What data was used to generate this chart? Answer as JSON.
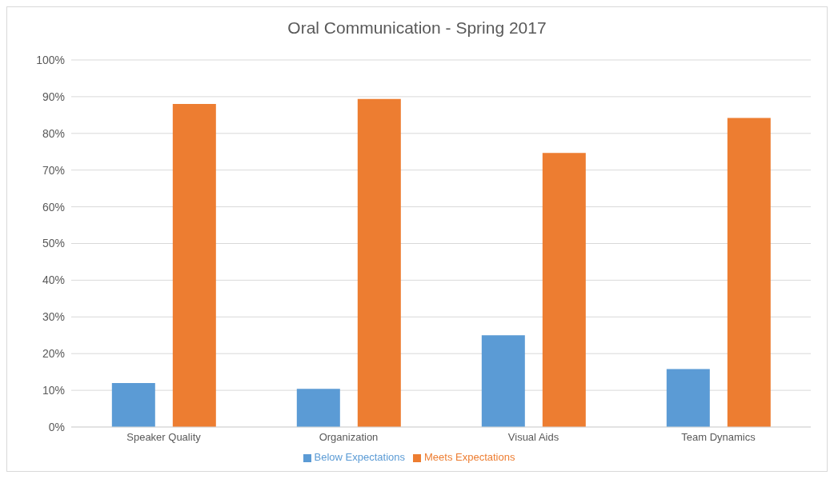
{
  "chart_data": {
    "type": "bar",
    "title": "Oral Communication - Spring 2017",
    "categories": [
      "Speaker Quality",
      "Organization",
      "Visual Aids",
      "Team Dynamics"
    ],
    "series": [
      {
        "name": "Below Expectations",
        "color": "#5b9bd5",
        "values": [
          12,
          10.4,
          25,
          15.8
        ]
      },
      {
        "name": "Meets Expectations",
        "color": "#ed7d31",
        "values": [
          88,
          89.4,
          74.7,
          84.2
        ]
      }
    ],
    "ylim": [
      0,
      100
    ],
    "yticks": [
      {
        "value": 0,
        "label": "0%"
      },
      {
        "value": 10,
        "label": "10%"
      },
      {
        "value": 20,
        "label": "20%"
      },
      {
        "value": 30,
        "label": "30%"
      },
      {
        "value": 40,
        "label": "40%"
      },
      {
        "value": 50,
        "label": "50%"
      },
      {
        "value": 60,
        "label": "60%"
      },
      {
        "value": 70,
        "label": "70%"
      },
      {
        "value": 80,
        "label": "80%"
      },
      {
        "value": 90,
        "label": "90%"
      },
      {
        "value": 100,
        "label": "100%"
      }
    ],
    "grid": "y",
    "legend": "bottom"
  }
}
